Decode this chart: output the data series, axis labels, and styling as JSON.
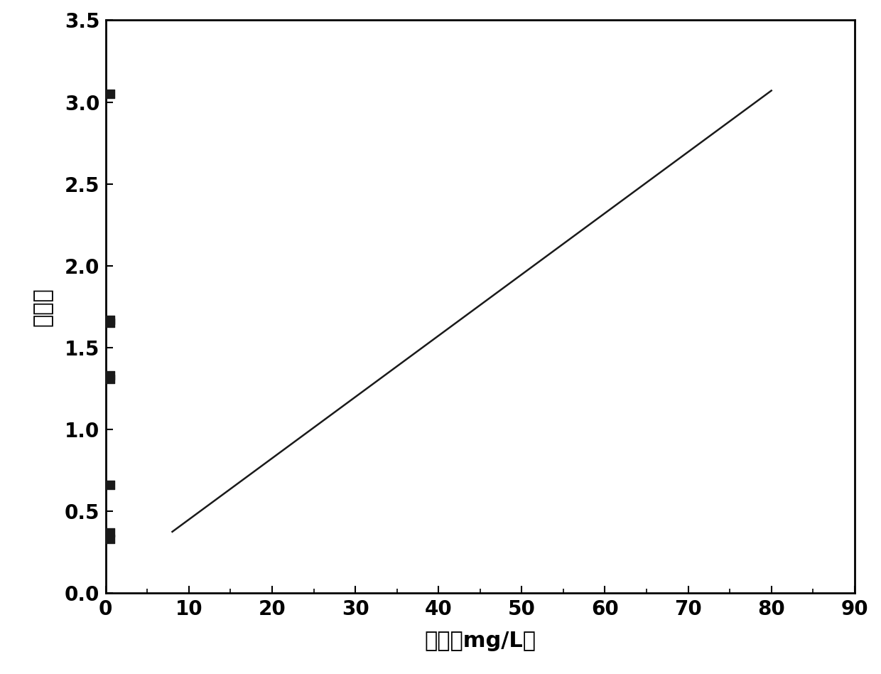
{
  "scatter_x": [
    0.5,
    0.5,
    0.5,
    0.5,
    0.5,
    0.5,
    0.5,
    0.5
  ],
  "scatter_y": [
    0.33,
    0.37,
    0.66,
    1.31,
    1.33,
    1.65,
    1.67,
    3.05
  ],
  "line_x": [
    8.0,
    80.0
  ],
  "line_y": [
    0.375,
    3.07
  ],
  "xlabel": "浓度（mg/L）",
  "ylabel": "吸光度",
  "xlim": [
    0,
    90
  ],
  "ylim": [
    0.0,
    3.5
  ],
  "xticks": [
    0,
    10,
    20,
    30,
    40,
    50,
    60,
    70,
    80,
    90
  ],
  "yticks": [
    0.0,
    0.5,
    1.0,
    1.5,
    2.0,
    2.5,
    3.0,
    3.5
  ],
  "marker_color": "#1a1a1a",
  "line_color": "#1a1a1a",
  "marker_size": 80,
  "marker_shape": "s",
  "line_width": 1.8,
  "xlabel_fontsize": 22,
  "ylabel_fontsize": 22,
  "tick_fontsize": 20,
  "background_color": "#ffffff"
}
